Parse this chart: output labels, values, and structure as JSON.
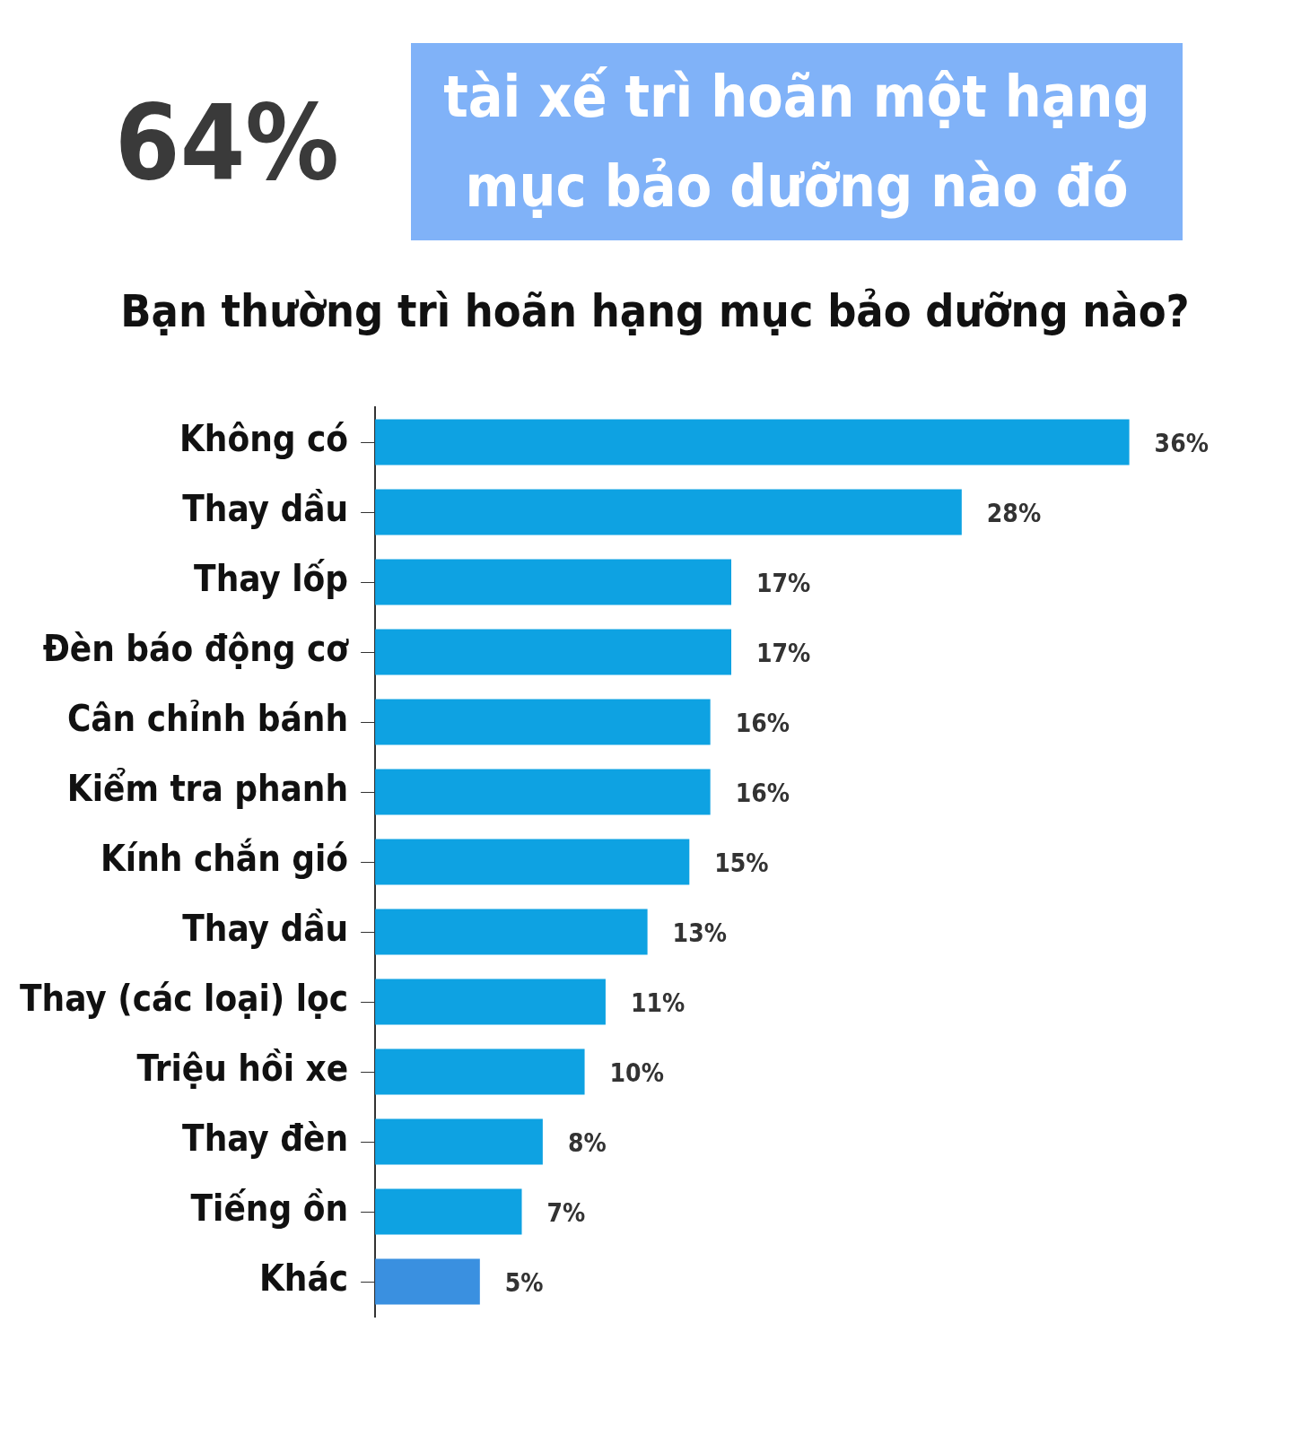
{
  "chart_data": {
    "type": "bar",
    "orientation": "horizontal",
    "title": "64%",
    "subtitle": "tài xế trì hoãn một hạng mục bảo dưỡng nào đó",
    "annotations": [
      "Bạn thường trì hoãn hạng mục bảo dưỡng nào?"
    ],
    "categories": [
      "Không có",
      "Thay dầu",
      "Thay lốp",
      "Đèn báo động cơ",
      "Cân chỉnh bánh",
      "Kiểm tra phanh",
      "Kính chắn gió",
      "Thay dầu",
      "Thay (các loại) lọc",
      "Triệu hồi xe",
      "Thay đèn",
      "Tiếng ồn",
      "Khác"
    ],
    "values": [
      36,
      28,
      17,
      17,
      16,
      16,
      15,
      13,
      11,
      10,
      8,
      7,
      5
    ],
    "value_labels": [
      "36%",
      "28%",
      "17%",
      "17%",
      "16%",
      "16%",
      "15%",
      "13%",
      "11%",
      "10%",
      "8%",
      "7%",
      "5%"
    ],
    "colors": [
      "#0ea2e2",
      "#0ea2e2",
      "#0ea2e2",
      "#0ea2e2",
      "#0ea2e2",
      "#0ea2e2",
      "#0ea2e2",
      "#0ea2e2",
      "#0ea2e2",
      "#0ea2e2",
      "#0ea2e2",
      "#0ea2e2",
      "#3a90e0"
    ],
    "legend": false
  }
}
